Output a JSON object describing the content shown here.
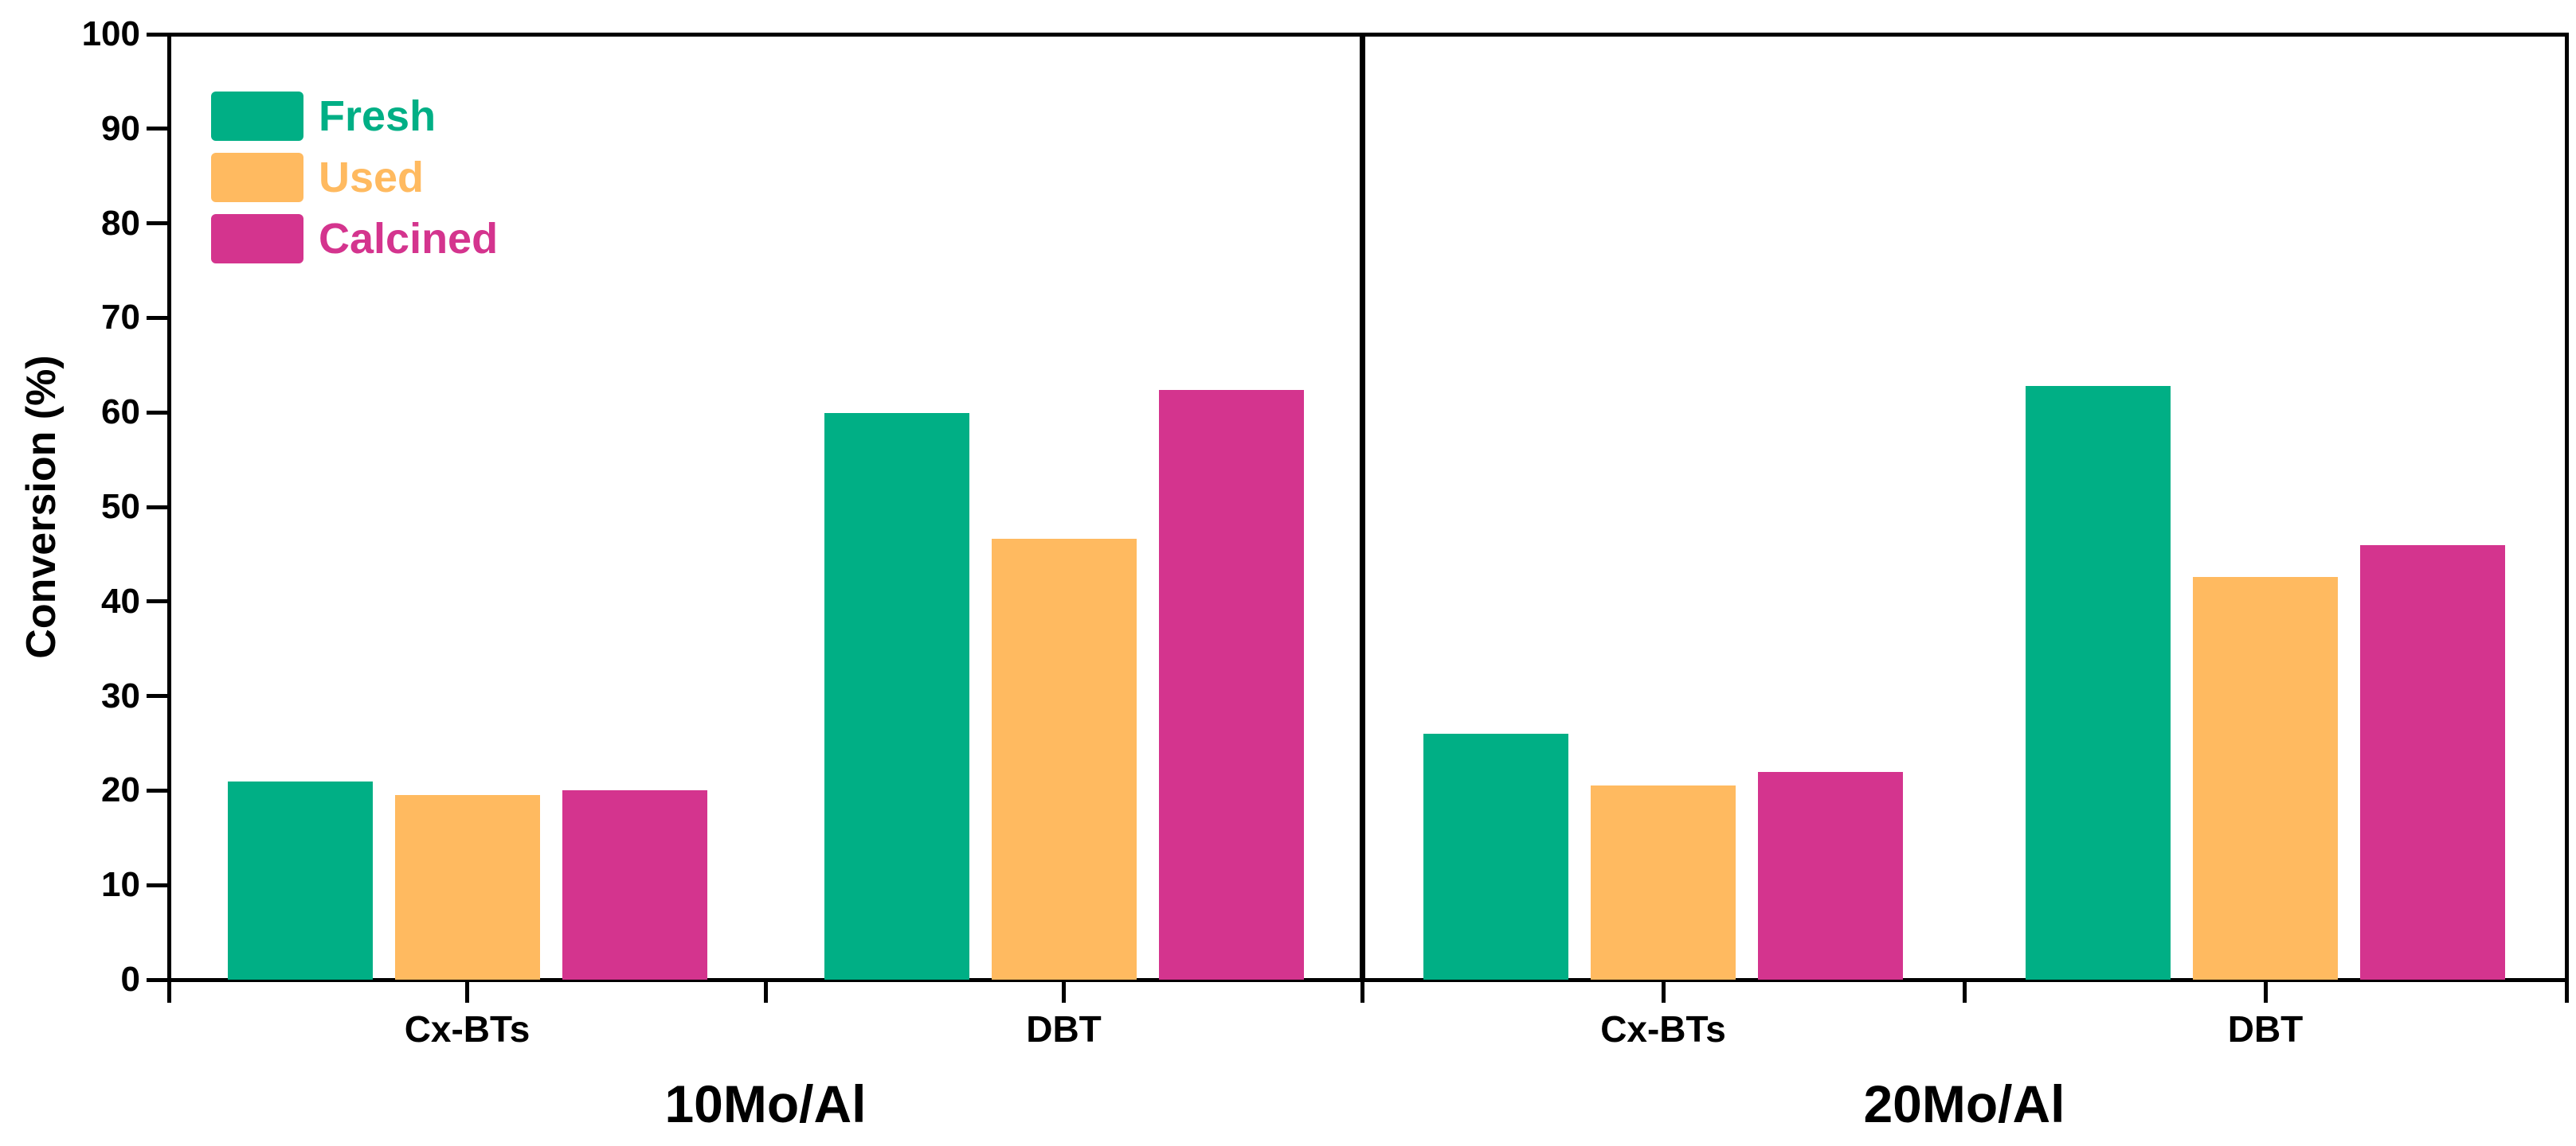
{
  "chart_data": {
    "type": "bar",
    "title": "",
    "ylabel": "Conversion (%)",
    "ylim": [
      0,
      100
    ],
    "ytick_step": 10,
    "yticks": [
      0,
      10,
      20,
      30,
      40,
      50,
      60,
      70,
      80,
      90,
      100
    ],
    "grid": false,
    "legend_position": "top-left",
    "panels": [
      {
        "label": "10Mo/Al",
        "categories": [
          "Cx-BTs",
          "DBT"
        ],
        "series": [
          {
            "name": "Fresh",
            "color": "#00AF85",
            "values": [
              21.0,
              59.9
            ]
          },
          {
            "name": "Used",
            "color": "#FFBA60",
            "values": [
              19.5,
              46.6
            ]
          },
          {
            "name": "Calcined",
            "color": "#D4348E",
            "values": [
              20.0,
              62.4
            ]
          }
        ]
      },
      {
        "label": "20Mo/Al",
        "categories": [
          "Cx-BTs",
          "DBT"
        ],
        "series": [
          {
            "name": "Fresh",
            "color": "#00AF85",
            "values": [
              26.0,
              62.8
            ]
          },
          {
            "name": "Used",
            "color": "#FFBA60",
            "values": [
              20.5,
              42.6
            ]
          },
          {
            "name": "Calcined",
            "color": "#D4348E",
            "values": [
              22.0,
              46.0
            ]
          }
        ]
      }
    ],
    "axis_color": "#000000",
    "background_color": "#ffffff"
  }
}
